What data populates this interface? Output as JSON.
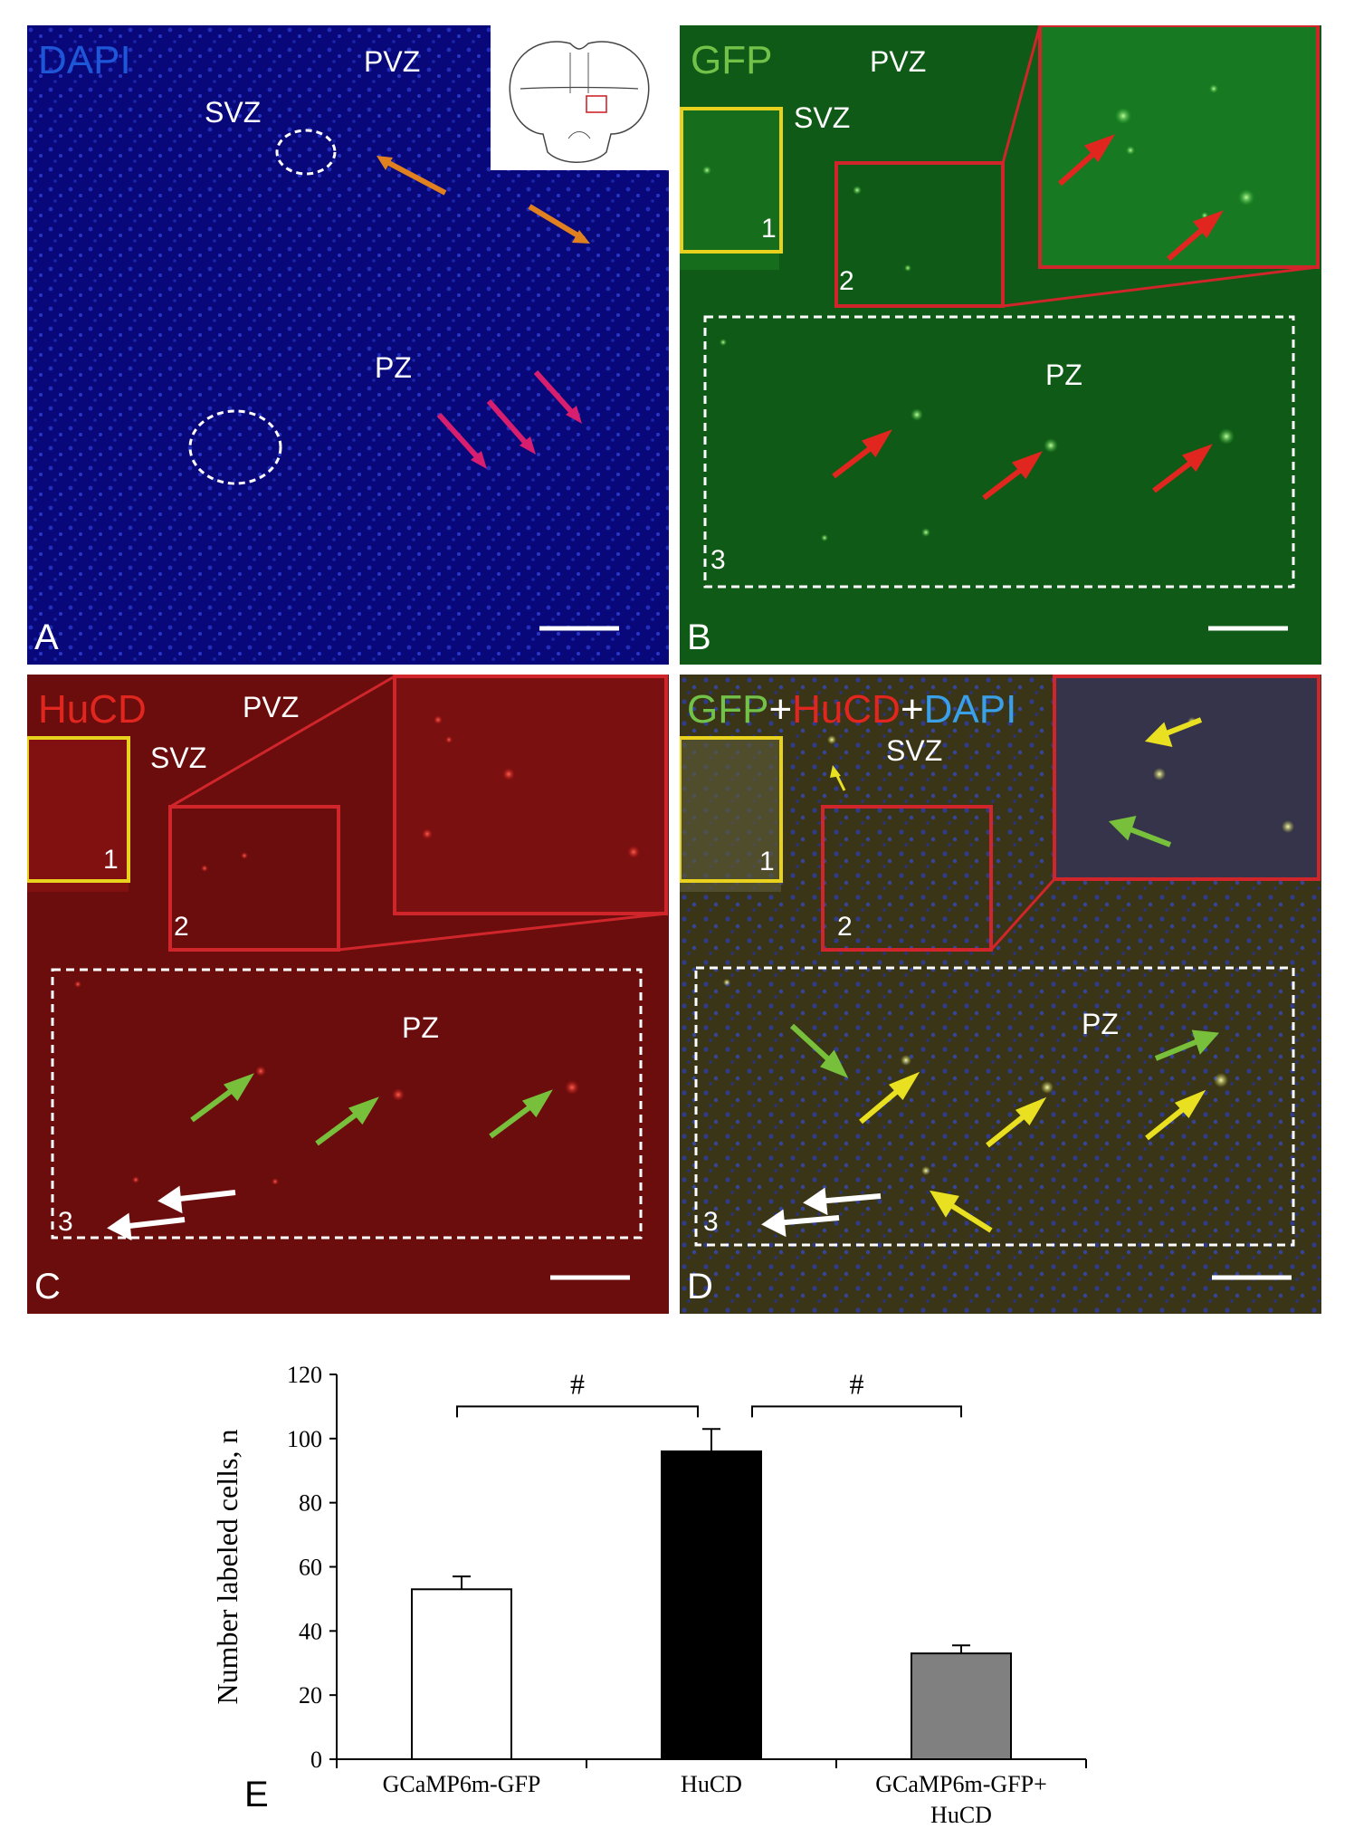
{
  "panels": {
    "A": {
      "letter": "A",
      "stain": "DAPI",
      "stain_color": "#1e56d8",
      "zones": {
        "pvz": "PVZ",
        "svz": "SVZ",
        "pz": "PZ"
      },
      "bg_color": "#08087a"
    },
    "B": {
      "letter": "B",
      "stain": "GFP",
      "stain_color": "#72c24a",
      "zones": {
        "pvz": "PVZ",
        "svz": "SVZ",
        "pz": "PZ"
      },
      "region_numbers": [
        "1",
        "2",
        "3"
      ],
      "bg_color": "#0f5a16"
    },
    "C": {
      "letter": "C",
      "stain": "HuCD",
      "stain_color": "#e0261e",
      "zones": {
        "pvz": "PVZ",
        "svz": "SVZ",
        "pz": "PZ"
      },
      "region_numbers": [
        "1",
        "2",
        "3"
      ],
      "bg_color": "#6b0d0d"
    },
    "D": {
      "letter": "D",
      "stain_parts": [
        {
          "text": "GFP",
          "color": "#72c24a"
        },
        {
          "text": "+",
          "color": "#ffffff"
        },
        {
          "text": "HuCD",
          "color": "#e0261e"
        },
        {
          "text": "+",
          "color": "#ffffff"
        },
        {
          "text": "DAPI",
          "color": "#3aa0e8"
        }
      ],
      "zones": {
        "svz": "SVZ",
        "pz": "PZ"
      },
      "region_numbers": [
        "1",
        "2",
        "3"
      ],
      "bg_color": "#3a3516"
    }
  },
  "panel_e_letter": "E",
  "chart_data": {
    "type": "bar",
    "categories": [
      "GCaMP6m-GFP",
      "HuCD",
      "GCaMP6m-GFP+\nHuCD"
    ],
    "values": [
      53,
      96,
      33
    ],
    "errors": [
      4,
      7,
      2.5
    ],
    "bar_colors": [
      "#ffffff",
      "#000000",
      "#808080"
    ],
    "ylabel": "Number labeled cells, n",
    "ylim": [
      0,
      120
    ],
    "yticks": [
      0,
      20,
      40,
      60,
      80,
      100,
      120
    ],
    "significance": [
      {
        "from": 0,
        "to": 1,
        "symbol": "#"
      },
      {
        "from": 1,
        "to": 2,
        "symbol": "#"
      }
    ]
  }
}
